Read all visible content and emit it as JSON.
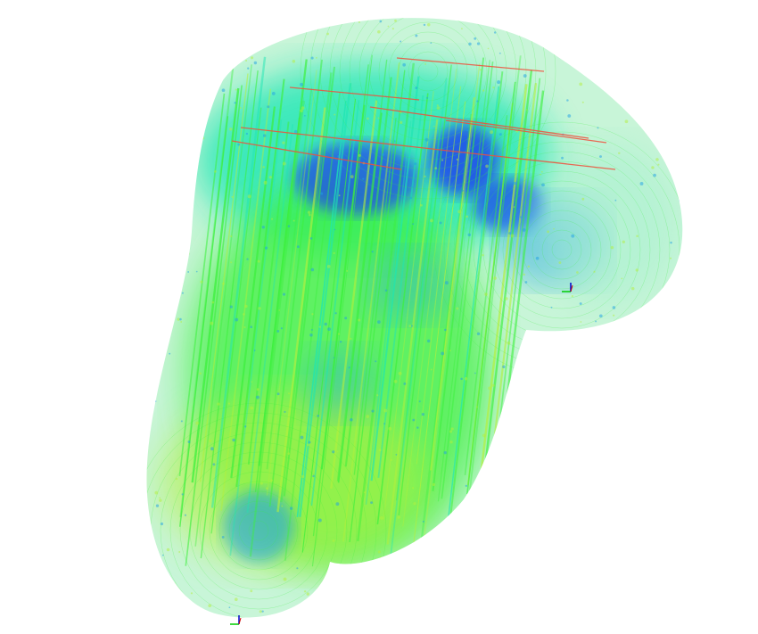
{
  "viewer": {
    "background": "#ffffff",
    "colormap": [
      "#1e3cf0",
      "#1ea0e6",
      "#1ee6b4",
      "#3cf03c",
      "#b4f03c",
      "#f0503c"
    ],
    "axes_markers": [
      {
        "name": "axis-gizmo-right"
      },
      {
        "name": "axis-gizmo-bottom-left"
      }
    ]
  }
}
